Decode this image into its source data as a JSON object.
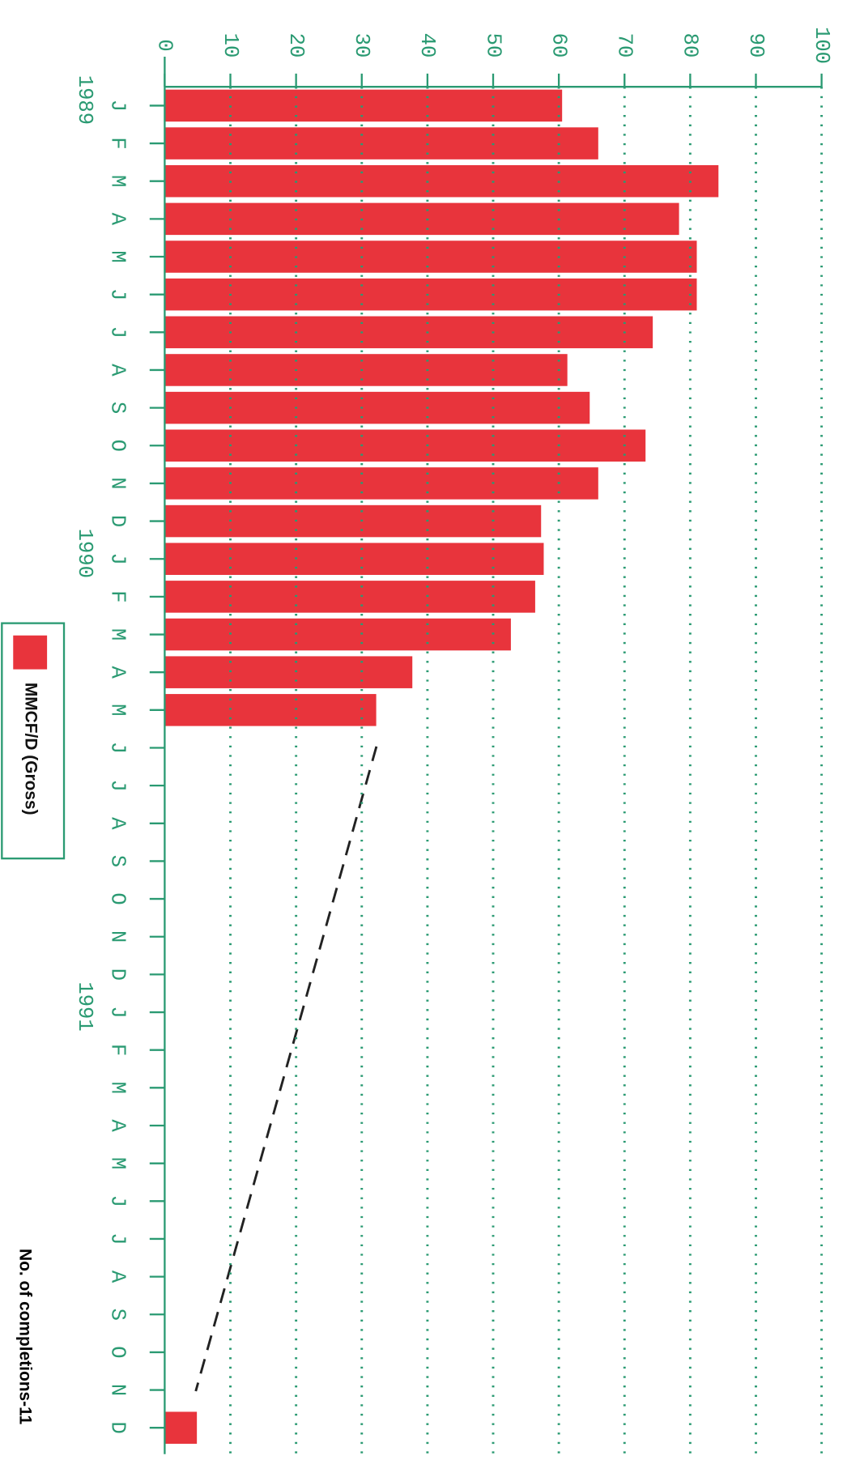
{
  "chart_data": {
    "type": "bar",
    "categories": [
      "J",
      "F",
      "M",
      "A",
      "M",
      "J",
      "J",
      "A",
      "S",
      "O",
      "N",
      "D",
      "J",
      "F",
      "M",
      "A",
      "M",
      "J",
      "J",
      "A",
      "S",
      "O",
      "N",
      "D",
      "J",
      "F",
      "M",
      "A",
      "M",
      "J",
      "J",
      "A",
      "S",
      "O",
      "N",
      "D"
    ],
    "years": [
      "1989",
      null,
      null,
      null,
      null,
      null,
      null,
      null,
      null,
      null,
      null,
      null,
      "1990",
      null,
      null,
      null,
      null,
      null,
      null,
      null,
      null,
      null,
      null,
      null,
      "1991",
      null,
      null,
      null,
      null,
      null,
      null,
      null,
      null,
      null,
      null,
      null
    ],
    "series": [
      {
        "name": "MMCF/D (Gross)",
        "color": "#e8343c",
        "values": [
          60.5,
          66,
          84.3,
          78.3,
          81,
          81,
          74.3,
          61.3,
          64.7,
          73.2,
          66,
          57.3,
          57.7,
          56.4,
          52.7,
          37.7,
          32.2,
          null,
          null,
          null,
          null,
          null,
          null,
          null,
          null,
          null,
          null,
          null,
          null,
          null,
          null,
          null,
          null,
          null,
          null,
          4.9
        ]
      }
    ],
    "ylim": [
      0,
      100
    ],
    "yticks": [
      0,
      10,
      20,
      30,
      40,
      50,
      60,
      70,
      80,
      90,
      100
    ],
    "grid": true,
    "annotation": "No. of completions-11",
    "axis_color": "#2a9a72"
  }
}
